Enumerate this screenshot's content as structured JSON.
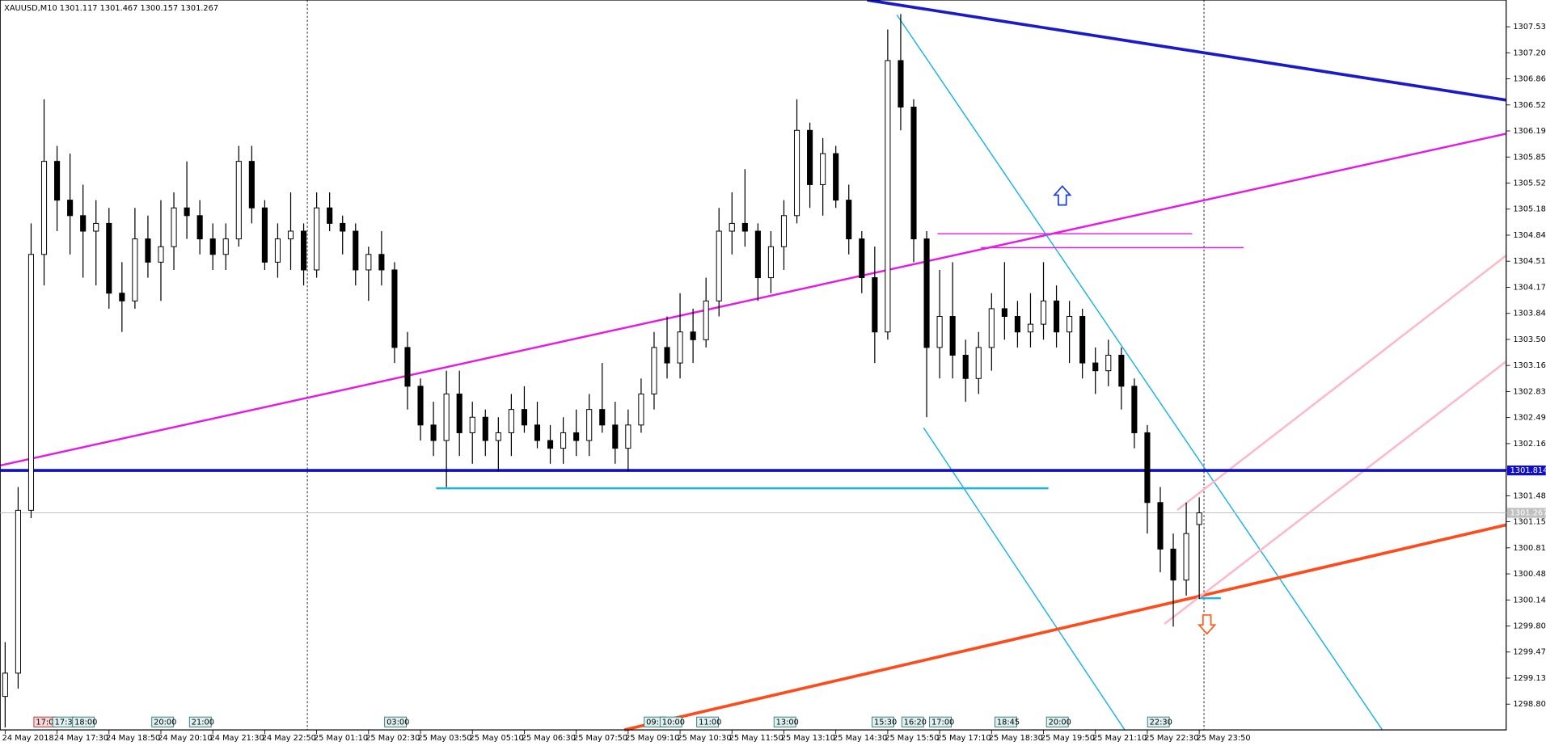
{
  "chart_data": {
    "type": "candlestick",
    "title": "XAUUSD,M10  1301.117 1301.467 1300.157 1301.267",
    "categories": [
      "24 May 2018",
      null,
      null,
      null,
      "24 May 17:30",
      null,
      null,
      null,
      "24 May 18:50",
      null,
      null,
      null,
      "24 May 20:10",
      null,
      null,
      null,
      "24 May 21:30",
      null,
      null,
      null,
      "24 May 22:50",
      null,
      null,
      null,
      "25 May 01:10",
      null,
      null,
      null,
      "25 May 02:30",
      null,
      null,
      null,
      "25 May 03:50",
      null,
      null,
      null,
      "25 May 05:10",
      null,
      null,
      null,
      "25 May 06:30",
      null,
      null,
      null,
      "25 May 07:50",
      null,
      null,
      null,
      "25 May 09:10",
      null,
      null,
      null,
      "25 May 10:30",
      null,
      null,
      null,
      "25 May 11:50",
      null,
      null,
      null,
      "25 May 13:10",
      null,
      null,
      null,
      "25 May 14:30",
      null,
      null,
      null,
      "25 May 15:50",
      null,
      null,
      null,
      "25 May 17:10",
      null,
      null,
      null,
      "25 May 18:30",
      null,
      null,
      null,
      "25 May 19:50",
      null,
      null,
      null,
      "25 May 21:10",
      null,
      null,
      null,
      "25 May 22:30",
      null,
      null,
      null,
      "25 May 23:50"
    ],
    "open": [
      1298.9,
      1299.2,
      1301.3,
      1304.6,
      1305.8,
      1305.3,
      1305.1,
      1304.9,
      1305.0,
      1304.1,
      1304.0,
      1304.8,
      1304.5,
      1304.7,
      1305.2,
      1305.1,
      1304.8,
      1304.6,
      1304.8,
      1305.8,
      1305.2,
      1304.5,
      1304.8,
      1304.9,
      1304.4,
      1305.2,
      1305.0,
      1304.9,
      1304.4,
      1304.6,
      1304.4,
      1303.4,
      1302.9,
      1302.4,
      1302.2,
      1302.8,
      1302.3,
      1302.5,
      1302.2,
      1302.3,
      1302.6,
      1302.4,
      1302.2,
      1302.1,
      1302.3,
      1302.2,
      1302.6,
      1302.4,
      1302.1,
      1302.4,
      1302.8,
      1303.4,
      1303.2,
      1303.6,
      1303.5,
      1304.0,
      1304.9,
      1305.0,
      1304.9,
      1304.3,
      1304.7,
      1305.1,
      1306.2,
      1305.5,
      1305.9,
      1305.3,
      1304.8,
      1304.3,
      1303.6,
      1307.1,
      1306.5,
      1304.8,
      1303.4,
      1303.8,
      1303.3,
      1303.0,
      1303.4,
      1303.9,
      1303.8,
      1303.6,
      1303.7,
      1304.0,
      1303.6,
      1303.8,
      1303.2,
      1303.1,
      1303.3,
      1302.9,
      1302.3,
      1301.4,
      1300.8,
      1300.4,
      1301.117
    ],
    "high": [
      1299.6,
      1301.6,
      1305.0,
      1306.6,
      1306.0,
      1305.9,
      1305.5,
      1305.3,
      1305.2,
      1304.5,
      1305.2,
      1305.1,
      1305.3,
      1305.4,
      1305.8,
      1305.3,
      1305.0,
      1305.0,
      1306.0,
      1306.0,
      1305.3,
      1305.0,
      1305.4,
      1305.0,
      1305.4,
      1305.4,
      1305.1,
      1305.0,
      1304.7,
      1304.9,
      1304.5,
      1303.6,
      1303.0,
      1302.7,
      1303.1,
      1303.1,
      1302.7,
      1302.6,
      1302.5,
      1302.8,
      1302.9,
      1302.7,
      1302.4,
      1302.5,
      1302.6,
      1302.8,
      1303.2,
      1302.7,
      1302.6,
      1303.0,
      1303.6,
      1303.8,
      1304.1,
      1303.9,
      1304.3,
      1305.2,
      1305.4,
      1305.7,
      1305.0,
      1304.9,
      1305.3,
      1306.6,
      1306.3,
      1306.1,
      1306.0,
      1305.5,
      1304.9,
      1304.7,
      1307.5,
      1307.7,
      1306.6,
      1304.9,
      1304.4,
      1304.5,
      1303.5,
      1303.6,
      1304.1,
      1304.5,
      1304.0,
      1304.1,
      1304.5,
      1304.2,
      1304.0,
      1303.9,
      1303.4,
      1303.5,
      1303.4,
      1303.0,
      1302.4,
      1301.6,
      1301.0,
      1301.4,
      1301.467
    ],
    "low": [
      1298.5,
      1299.0,
      1301.2,
      1304.2,
      1304.9,
      1304.6,
      1304.3,
      1304.2,
      1303.9,
      1303.6,
      1303.9,
      1304.3,
      1304.0,
      1304.4,
      1304.8,
      1304.6,
      1304.4,
      1304.4,
      1304.7,
      1305.0,
      1304.4,
      1304.3,
      1304.4,
      1304.2,
      1304.3,
      1304.9,
      1304.6,
      1304.2,
      1304.0,
      1304.2,
      1303.2,
      1302.6,
      1302.2,
      1302.0,
      1301.6,
      1302.0,
      1301.9,
      1302.0,
      1301.8,
      1302.0,
      1302.3,
      1302.1,
      1301.9,
      1301.9,
      1302.0,
      1302.0,
      1302.3,
      1301.9,
      1301.8,
      1302.3,
      1302.6,
      1303.0,
      1303.0,
      1303.2,
      1303.4,
      1303.8,
      1304.6,
      1304.7,
      1304.0,
      1304.1,
      1304.4,
      1305.0,
      1305.2,
      1305.1,
      1305.2,
      1304.6,
      1304.1,
      1303.2,
      1303.5,
      1306.2,
      1304.5,
      1302.5,
      1303.0,
      1303.0,
      1302.7,
      1302.8,
      1303.1,
      1303.5,
      1303.4,
      1303.4,
      1303.5,
      1303.4,
      1303.2,
      1303.0,
      1302.8,
      1302.9,
      1302.6,
      1302.1,
      1301.0,
      1300.5,
      1299.8,
      1300.2,
      1300.157
    ],
    "close": [
      1299.2,
      1301.3,
      1304.6,
      1305.8,
      1305.3,
      1305.1,
      1304.9,
      1305.0,
      1304.1,
      1304.0,
      1304.8,
      1304.5,
      1304.7,
      1305.2,
      1305.1,
      1304.8,
      1304.6,
      1304.8,
      1305.8,
      1305.2,
      1304.5,
      1304.8,
      1304.9,
      1304.4,
      1305.2,
      1305.0,
      1304.9,
      1304.4,
      1304.6,
      1304.4,
      1303.4,
      1302.9,
      1302.4,
      1302.2,
      1302.8,
      1302.3,
      1302.5,
      1302.2,
      1302.3,
      1302.6,
      1302.4,
      1302.2,
      1302.1,
      1302.3,
      1302.2,
      1302.6,
      1302.4,
      1302.1,
      1302.4,
      1302.8,
      1303.4,
      1303.2,
      1303.6,
      1303.5,
      1304.0,
      1304.9,
      1305.0,
      1304.9,
      1304.3,
      1304.7,
      1305.1,
      1306.2,
      1305.5,
      1305.9,
      1305.3,
      1304.8,
      1304.3,
      1303.6,
      1307.1,
      1306.5,
      1304.8,
      1303.4,
      1303.8,
      1303.3,
      1303.0,
      1303.4,
      1303.9,
      1303.8,
      1303.6,
      1303.7,
      1304.0,
      1303.6,
      1303.8,
      1303.2,
      1303.1,
      1303.3,
      1302.9,
      1302.3,
      1301.4,
      1300.8,
      1300.4,
      1301.0,
      1301.267
    ],
    "ylim": [
      1298.468,
      1307.881
    ],
    "yticks": [
      {
        "value": 1298.8,
        "label": "1298.800"
      },
      {
        "value": 1299.136,
        "label": "1299.136"
      },
      {
        "value": 1299.472,
        "label": "1299.472"
      },
      {
        "value": 1299.808,
        "label": "1299.808"
      },
      {
        "value": 1300.144,
        "label": "1300.144"
      },
      {
        "value": 1300.48,
        "label": "1300.480"
      },
      {
        "value": 1300.816,
        "label": "1300.816"
      },
      {
        "value": 1301.152,
        "label": "1301.152"
      },
      {
        "value": 1301.488,
        "label": "1301.488"
      },
      {
        "value": 1301.824,
        "label": "1301.824"
      },
      {
        "value": 1302.16,
        "label": "1302.160"
      },
      {
        "value": 1302.496,
        "label": "1302.496"
      },
      {
        "value": 1302.832,
        "label": "1302.832"
      },
      {
        "value": 1303.168,
        "label": "1303.168"
      },
      {
        "value": 1303.504,
        "label": "1303.504"
      },
      {
        "value": 1303.84,
        "label": "1303.840"
      },
      {
        "value": 1304.176,
        "label": "1304.176"
      },
      {
        "value": 1304.512,
        "label": "1304.512"
      },
      {
        "value": 1304.848,
        "label": "1304.848"
      },
      {
        "value": 1305.184,
        "label": "1305.184"
      },
      {
        "value": 1305.52,
        "label": "1305.520"
      },
      {
        "value": 1305.856,
        "label": "1305.856"
      },
      {
        "value": 1306.192,
        "label": "1306.192"
      },
      {
        "value": 1306.528,
        "label": "1306.528"
      },
      {
        "value": 1306.864,
        "label": "1306.864"
      },
      {
        "value": 1307.2,
        "label": "1307.200"
      },
      {
        "value": 1307.536,
        "label": "1307.536"
      }
    ],
    "hlines": [
      {
        "value": 1301.814,
        "color": "#1010c0"
      },
      {
        "value": 1301.267,
        "color": "#c0c0c0"
      }
    ],
    "bull_color": "#ffffff",
    "bear_color": "#000000",
    "time_markers": [
      "17:00",
      "17:35",
      "18:00",
      "20:00",
      "21:00",
      "03:00",
      "09:10",
      "10:00",
      "11:00",
      "13:00",
      "15:30",
      "16:20",
      "17:00",
      "18:45",
      "20:00",
      "22:30"
    ]
  }
}
